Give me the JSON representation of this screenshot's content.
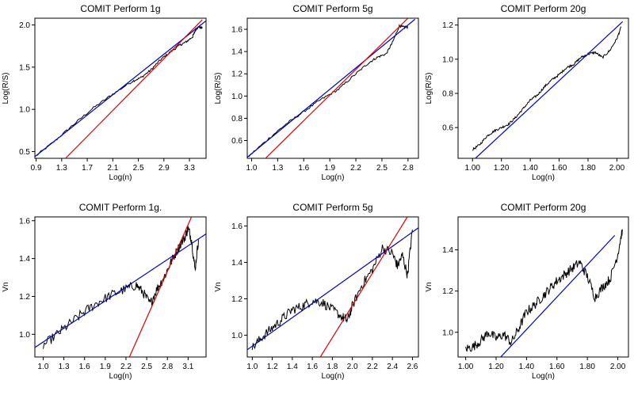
{
  "chart_data": [
    {
      "type": "line",
      "title": "COMIT Perform 1g",
      "xlabel": "Log(n)",
      "ylabel": "Log(R/S)",
      "xlim": [
        0.88,
        3.56
      ],
      "ylim": [
        0.42,
        2.08
      ],
      "x_ticks": [
        0.9,
        1.3,
        1.7,
        2.1,
        2.5,
        2.9,
        3.3
      ],
      "x_tick_labels": [
        "0.9",
        "1.3",
        "1.7",
        "2.1",
        "2.5",
        "2.9",
        "3.3"
      ],
      "y_ticks": [
        0.5,
        1.0,
        1.5,
        2.0
      ],
      "y_tick_labels": [
        "0.5",
        "1.0",
        "1.5",
        "2.0"
      ],
      "grid": false,
      "series": [
        {
          "role": "observed",
          "color": "#000000",
          "x": [
            0.9,
            1.2,
            1.5,
            1.8,
            2.1,
            2.4,
            2.55,
            2.7,
            2.85,
            3.0,
            3.15,
            3.25,
            3.35,
            3.4,
            3.45,
            3.5
          ],
          "y": [
            0.45,
            0.63,
            0.83,
            1.02,
            1.18,
            1.33,
            1.38,
            1.47,
            1.59,
            1.68,
            1.76,
            1.8,
            1.86,
            1.95,
            1.98,
            1.96
          ]
        },
        {
          "role": "fit",
          "color": "#0000cc",
          "x": [
            0.88,
            3.56
          ],
          "y": [
            0.44,
            2.05
          ]
        },
        {
          "role": "fit",
          "color": "#dd0000",
          "x": [
            1.36,
            3.5
          ],
          "y": [
            0.42,
            2.06
          ]
        }
      ]
    },
    {
      "type": "line",
      "title": "COMIT Perform 5g",
      "xlabel": "Log(n)",
      "ylabel": "Log(R/S)",
      "xlim": [
        0.95,
        2.92
      ],
      "ylim": [
        0.44,
        1.7
      ],
      "x_ticks": [
        1.0,
        1.3,
        1.6,
        1.9,
        2.2,
        2.5,
        2.8
      ],
      "x_tick_labels": [
        "1.0",
        "1.3",
        "1.6",
        "1.9",
        "2.2",
        "2.5",
        "2.8"
      ],
      "y_ticks": [
        0.6,
        0.8,
        1.0,
        1.2,
        1.4,
        1.6
      ],
      "y_tick_labels": [
        "0.6",
        "0.8",
        "1.0",
        "1.2",
        "1.4",
        "1.6"
      ],
      "grid": false,
      "series": [
        {
          "role": "observed",
          "color": "#000000",
          "x": [
            0.97,
            1.2,
            1.4,
            1.6,
            1.8,
            2.0,
            2.2,
            2.35,
            2.45,
            2.55,
            2.62,
            2.7,
            2.75,
            2.8
          ],
          "y": [
            0.46,
            0.62,
            0.75,
            0.86,
            0.97,
            1.06,
            1.2,
            1.3,
            1.35,
            1.38,
            1.48,
            1.63,
            1.62,
            1.62
          ]
        },
        {
          "role": "fit",
          "color": "#0000cc",
          "x": [
            0.95,
            2.88
          ],
          "y": [
            0.45,
            1.69
          ]
        },
        {
          "role": "fit",
          "color": "#dd0000",
          "x": [
            1.16,
            2.8
          ],
          "y": [
            0.44,
            1.7
          ]
        }
      ]
    },
    {
      "type": "line",
      "title": "COMIT Perform 20g",
      "xlabel": "Log(n)",
      "ylabel": "Log(R/S)",
      "xlim": [
        0.9,
        2.08
      ],
      "ylim": [
        0.42,
        1.24
      ],
      "x_ticks": [
        1.0,
        1.2,
        1.4,
        1.6,
        1.8,
        2.0
      ],
      "x_tick_labels": [
        "1.00",
        "1.20",
        "1.40",
        "1.60",
        "1.80",
        "2.00"
      ],
      "y_ticks": [
        0.6,
        0.8,
        1.0,
        1.2
      ],
      "y_tick_labels": [
        "0.6",
        "0.8",
        "1.0",
        "1.2"
      ],
      "grid": false,
      "series": [
        {
          "role": "observed",
          "color": "#000000",
          "x": [
            1.0,
            1.05,
            1.1,
            1.15,
            1.2,
            1.25,
            1.3,
            1.35,
            1.4,
            1.45,
            1.5,
            1.55,
            1.6,
            1.65,
            1.7,
            1.75,
            1.8,
            1.85,
            1.9,
            1.95,
            2.0,
            2.03
          ],
          "y": [
            0.47,
            0.5,
            0.55,
            0.58,
            0.6,
            0.62,
            0.66,
            0.71,
            0.76,
            0.79,
            0.84,
            0.88,
            0.91,
            0.95,
            0.97,
            1.01,
            1.03,
            1.04,
            1.01,
            1.05,
            1.12,
            1.19
          ]
        },
        {
          "role": "fit",
          "color": "#0000cc",
          "x": [
            1.02,
            2.04
          ],
          "y": [
            0.42,
            1.22
          ]
        }
      ]
    },
    {
      "type": "line",
      "title": "COMIT Perform 1g.",
      "xlabel": "Log(n)",
      "ylabel": "Vn",
      "xlim": [
        0.88,
        3.36
      ],
      "ylim": [
        0.88,
        1.62
      ],
      "x_ticks": [
        1.0,
        1.3,
        1.6,
        1.9,
        2.2,
        2.5,
        2.8,
        3.1
      ],
      "x_tick_labels": [
        "1.0",
        "1.3",
        "1.6",
        "1.9",
        "2.2",
        "2.5",
        "2.8",
        "3.1"
      ],
      "y_ticks": [
        1.0,
        1.2,
        1.4,
        1.6
      ],
      "y_tick_labels": [
        "1.0",
        "1.2",
        "1.4",
        "1.6"
      ],
      "grid": false,
      "series": [
        {
          "role": "observed",
          "color": "#000000",
          "x": [
            1.0,
            1.2,
            1.4,
            1.6,
            1.8,
            2.0,
            2.2,
            2.35,
            2.45,
            2.55,
            2.65,
            2.75,
            2.85,
            2.95,
            3.05,
            3.1,
            3.15,
            3.2,
            3.25
          ],
          "y": [
            0.94,
            1.0,
            1.06,
            1.12,
            1.17,
            1.21,
            1.24,
            1.26,
            1.22,
            1.16,
            1.24,
            1.3,
            1.38,
            1.45,
            1.51,
            1.56,
            1.5,
            1.34,
            1.5
          ]
        },
        {
          "role": "fit",
          "color": "#0000cc",
          "x": [
            0.88,
            3.36
          ],
          "y": [
            0.93,
            1.53
          ]
        },
        {
          "role": "fit",
          "color": "#dd0000",
          "x": [
            2.25,
            3.15
          ],
          "y": [
            0.88,
            1.62
          ]
        }
      ]
    },
    {
      "type": "line",
      "title": "COMIT Perform 5g",
      "xlabel": "Log(n)",
      "ylabel": "Vn",
      "xlim": [
        0.95,
        2.66
      ],
      "ylim": [
        0.88,
        1.65
      ],
      "x_ticks": [
        1.0,
        1.2,
        1.4,
        1.6,
        1.8,
        2.0,
        2.2,
        2.4,
        2.6
      ],
      "x_tick_labels": [
        "1.0",
        "1.2",
        "1.4",
        "1.6",
        "1.8",
        "2.0",
        "2.2",
        "2.4",
        "2.6"
      ],
      "y_ticks": [
        1.0,
        1.2,
        1.4,
        1.6
      ],
      "y_tick_labels": [
        "1.0",
        "1.2",
        "1.4",
        "1.6"
      ],
      "grid": false,
      "series": [
        {
          "role": "observed",
          "color": "#000000",
          "x": [
            1.0,
            1.1,
            1.2,
            1.3,
            1.4,
            1.5,
            1.6,
            1.7,
            1.8,
            1.9,
            1.95,
            2.0,
            2.1,
            2.2,
            2.3,
            2.4,
            2.45,
            2.5,
            2.55,
            2.6
          ],
          "y": [
            0.93,
            0.99,
            1.04,
            1.09,
            1.14,
            1.16,
            1.19,
            1.18,
            1.14,
            1.1,
            1.08,
            1.16,
            1.28,
            1.36,
            1.48,
            1.45,
            1.38,
            1.44,
            1.33,
            1.58
          ]
        },
        {
          "role": "fit",
          "color": "#0000cc",
          "x": [
            0.95,
            2.66
          ],
          "y": [
            0.92,
            1.59
          ]
        },
        {
          "role": "fit",
          "color": "#dd0000",
          "x": [
            1.68,
            2.55
          ],
          "y": [
            0.88,
            1.65
          ]
        }
      ]
    },
    {
      "type": "line",
      "title": "COMIT Perform 20g",
      "xlabel": "Log(n)",
      "ylabel": "Vn",
      "xlim": [
        0.95,
        2.07
      ],
      "ylim": [
        0.88,
        1.56
      ],
      "x_ticks": [
        1.0,
        1.2,
        1.4,
        1.6,
        1.8,
        2.0
      ],
      "x_tick_labels": [
        "1.00",
        "1.20",
        "1.40",
        "1.60",
        "1.80",
        "2.00"
      ],
      "y_ticks": [
        1.0,
        1.2,
        1.4
      ],
      "y_tick_labels": [
        "1.0",
        "1.2",
        "1.4"
      ],
      "grid": false,
      "series": [
        {
          "role": "observed",
          "color": "#000000",
          "x": [
            1.0,
            1.05,
            1.1,
            1.15,
            1.2,
            1.25,
            1.3,
            1.35,
            1.4,
            1.45,
            1.5,
            1.55,
            1.6,
            1.65,
            1.7,
            1.75,
            1.8,
            1.85,
            1.9,
            1.95,
            2.0,
            2.03
          ],
          "y": [
            0.92,
            0.93,
            0.96,
            1.0,
            0.97,
            0.99,
            0.95,
            1.02,
            1.1,
            1.13,
            1.17,
            1.21,
            1.25,
            1.28,
            1.31,
            1.34,
            1.27,
            1.17,
            1.22,
            1.26,
            1.38,
            1.5
          ]
        },
        {
          "role": "fit",
          "color": "#0000cc",
          "x": [
            1.23,
            1.98
          ],
          "y": [
            0.88,
            1.47
          ]
        }
      ]
    }
  ]
}
